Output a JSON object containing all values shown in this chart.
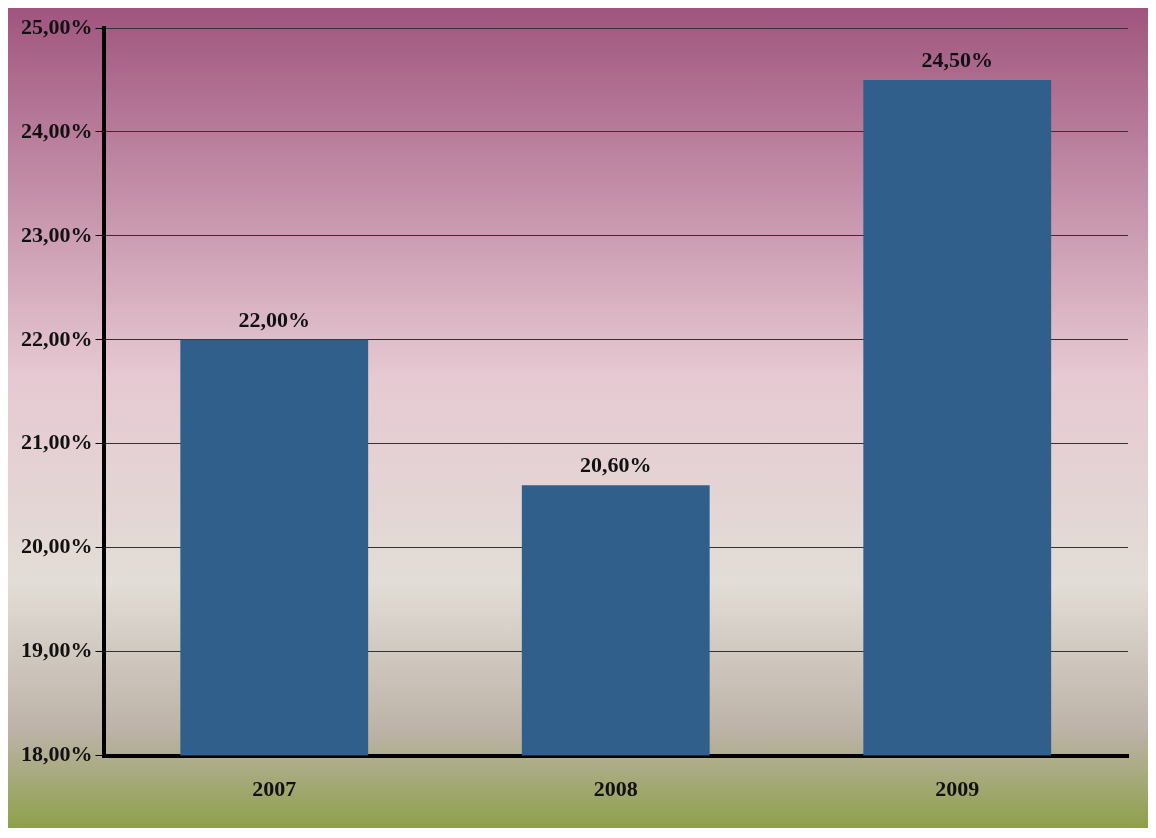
{
  "chart_data": {
    "type": "bar",
    "categories": [
      "2007",
      "2008",
      "2009"
    ],
    "values": [
      22,
      20.6,
      24.5
    ],
    "value_labels": [
      "22,00%",
      "20,60%",
      "24,50%"
    ],
    "color": "#2f5f8a",
    "ylim": [
      18,
      25
    ],
    "yticks": [
      {
        "value": 18,
        "label": "18,00%"
      },
      {
        "value": 19,
        "label": "19,00%"
      },
      {
        "value": 20,
        "label": "20,00%"
      },
      {
        "value": 21,
        "label": "21,00%"
      },
      {
        "value": 22,
        "label": "22,00%"
      },
      {
        "value": 23,
        "label": "23,00%"
      },
      {
        "value": 24,
        "label": "24,00%"
      },
      {
        "value": 25,
        "label": "25,00%"
      }
    ],
    "grid": "y",
    "legend": false
  }
}
